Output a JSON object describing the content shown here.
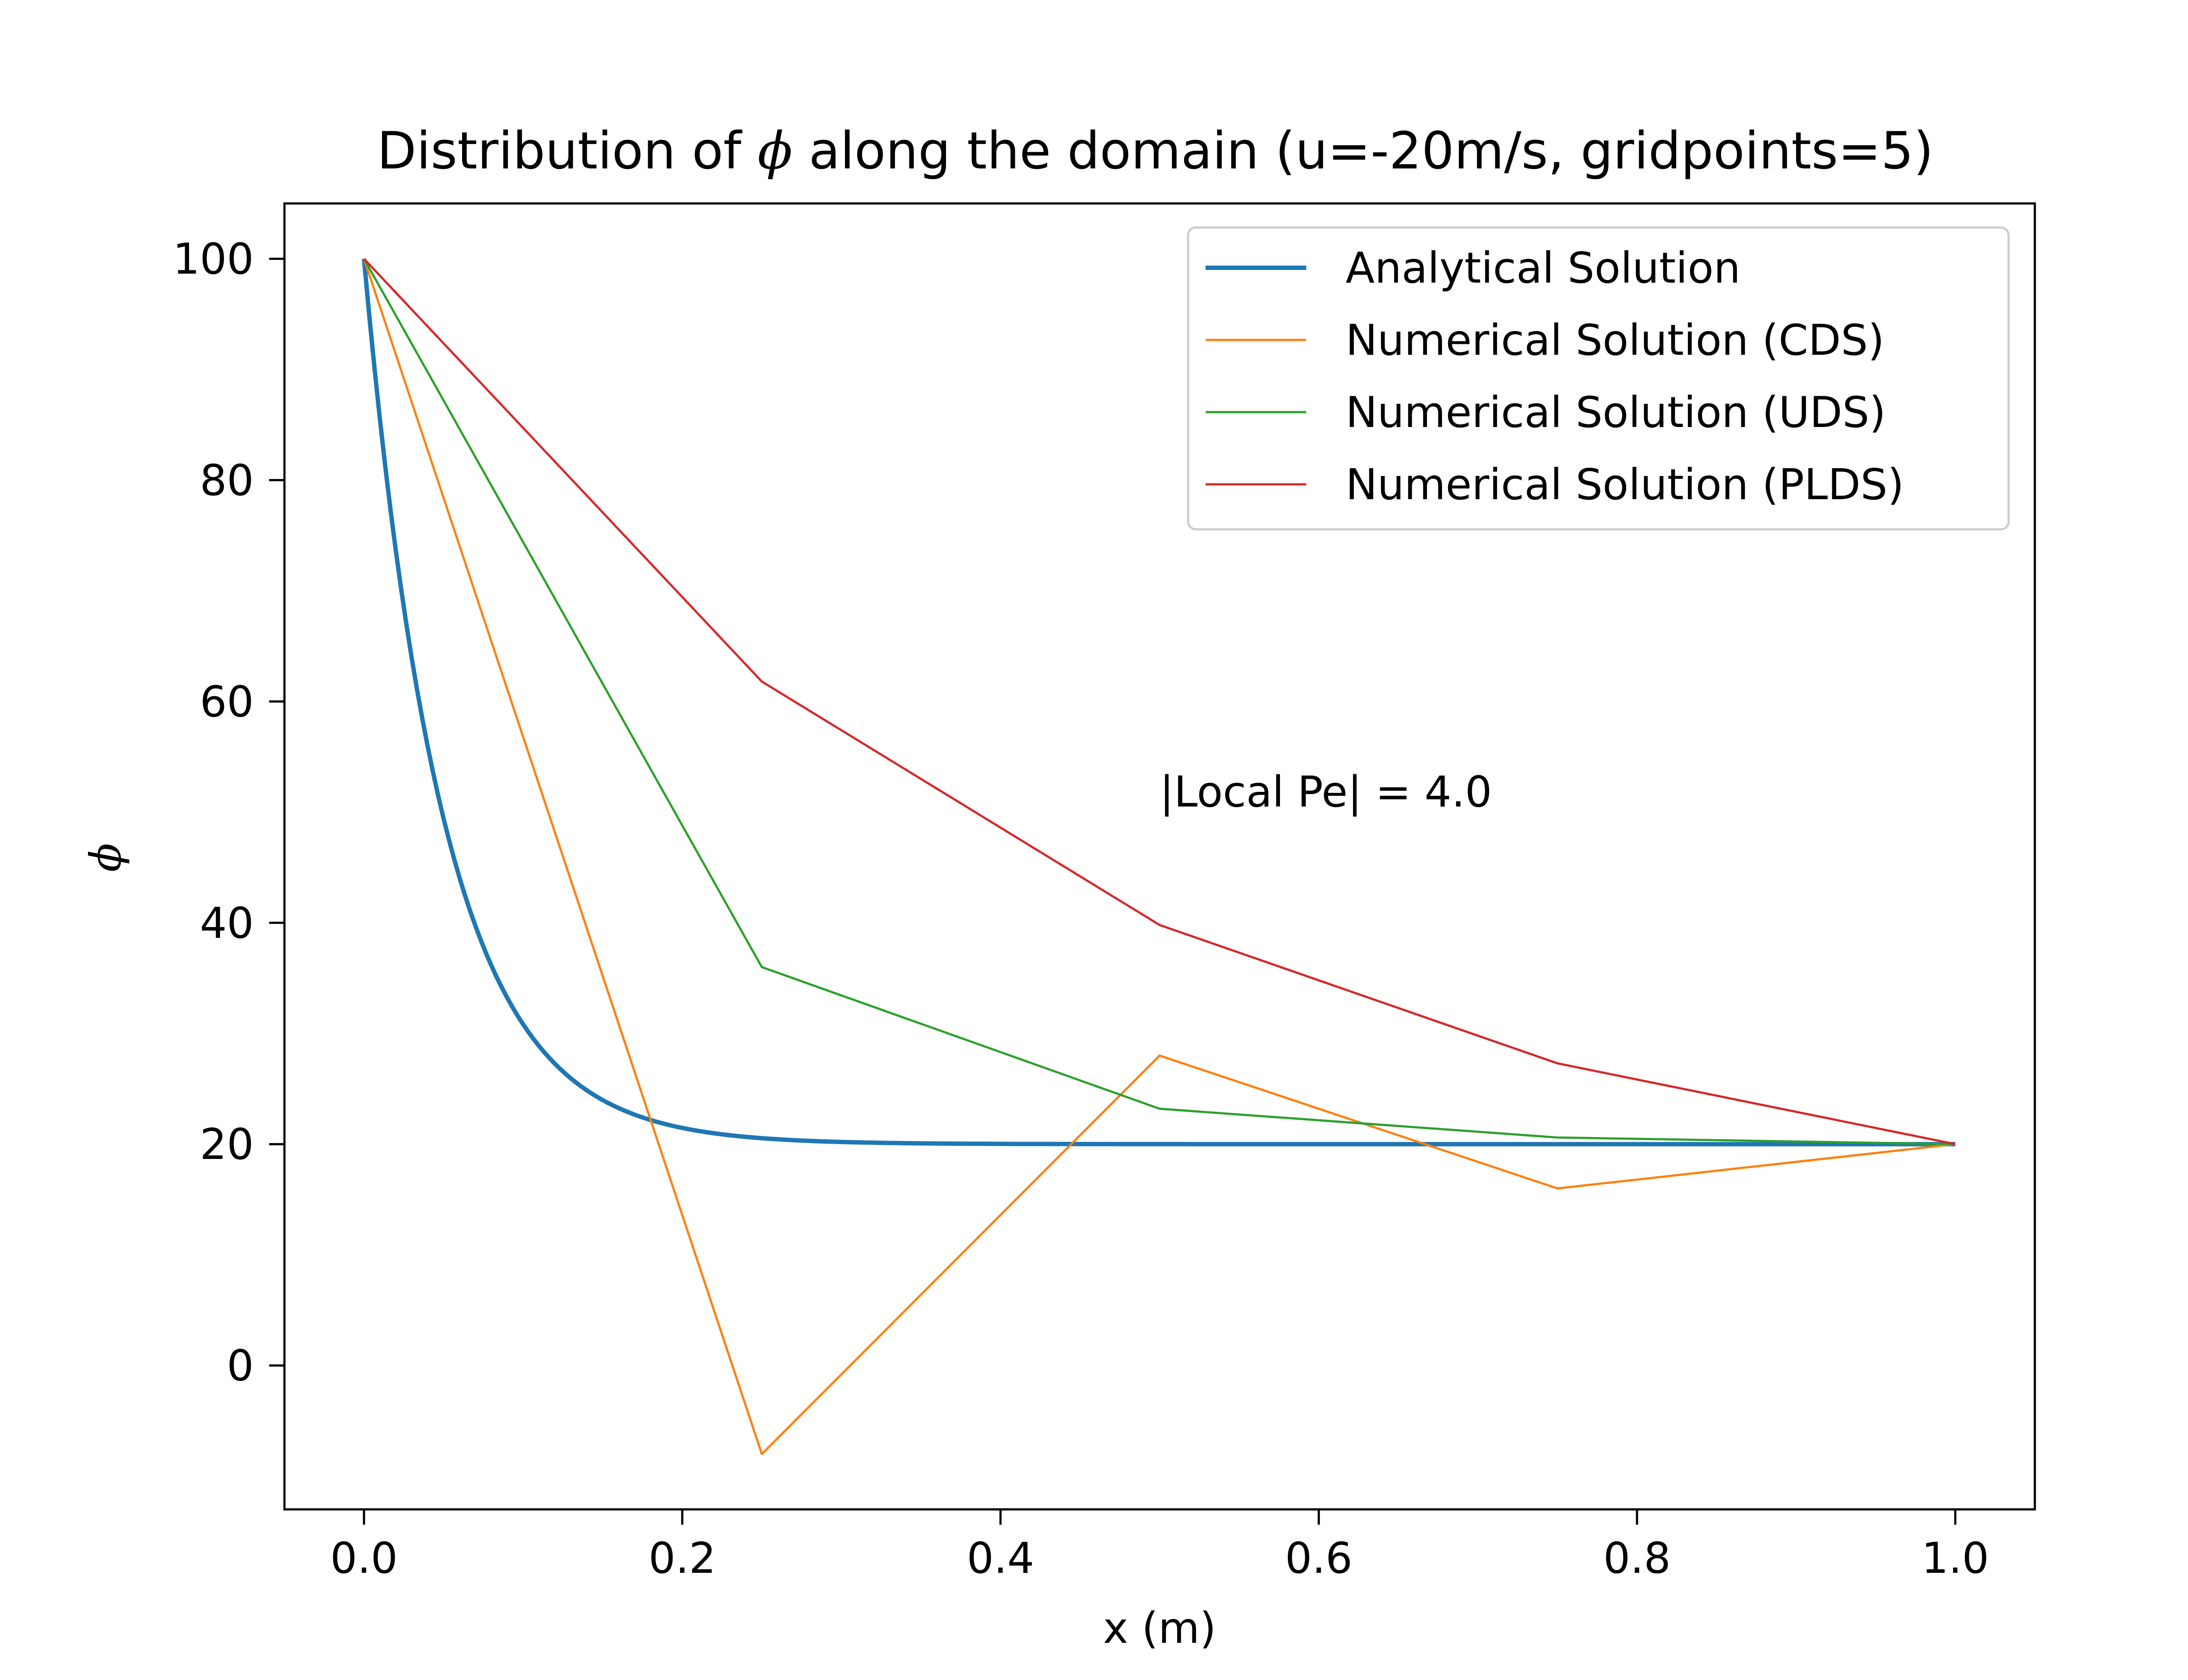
{
  "chart_data": {
    "type": "line",
    "title_prefix": "Distribution of ",
    "title_symbol": "ϕ",
    "title_suffix": " along the domain (u=-20m/s, gridpoints=5)",
    "xlabel": "x (m)",
    "ylabel": "ϕ",
    "xlim": [
      -0.05,
      1.05
    ],
    "ylim": [
      -13,
      105
    ],
    "xticks": [
      0.0,
      0.2,
      0.4,
      0.6,
      0.8,
      1.0
    ],
    "xtick_labels": [
      "0.0",
      "0.2",
      "0.4",
      "0.6",
      "0.8",
      "1.0"
    ],
    "yticks": [
      0,
      20,
      40,
      60,
      80,
      100
    ],
    "ytick_labels": [
      "0",
      "20",
      "40",
      "60",
      "80",
      "100"
    ],
    "grid": false,
    "legend_position": "top-right",
    "annotation": {
      "text": "|Local Pe| = 4.0",
      "x": 0.5,
      "y": 50.5
    },
    "series": [
      {
        "name": "Analytical Solution",
        "color": "#1f77b4",
        "kind": "analytical",
        "formula": "20 + 80*(exp(-20*x) - exp(-20))/(1 - exp(-20))",
        "x_range": [
          0,
          1
        ],
        "samples": 300
      },
      {
        "name": "Numerical Solution (CDS)",
        "color": "#ff7f0e",
        "kind": "points",
        "x": [
          0.0,
          0.25,
          0.5,
          0.75,
          1.0
        ],
        "y": [
          100,
          -8,
          28,
          16,
          20
        ]
      },
      {
        "name": "Numerical Solution (UDS)",
        "color": "#2ca02c",
        "kind": "points",
        "x": [
          0.0,
          0.25,
          0.5,
          0.75,
          1.0
        ],
        "y": [
          100,
          36,
          23.2,
          20.6,
          20
        ]
      },
      {
        "name": "Numerical Solution (PLDS)",
        "color": "#d62728",
        "kind": "points",
        "x": [
          0.0,
          0.25,
          0.5,
          0.75,
          1.0
        ],
        "y": [
          100,
          61.8,
          39.8,
          27.3,
          20
        ]
      }
    ]
  }
}
